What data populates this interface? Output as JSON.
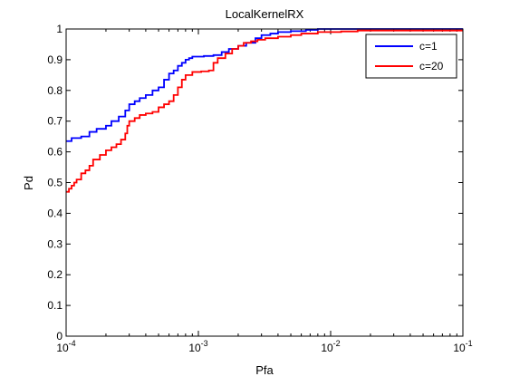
{
  "chart_data": {
    "type": "line",
    "title": "LocalKernelRX",
    "xlabel": "Pfa",
    "ylabel": "Pd",
    "xscale": "log",
    "xlim": [
      0.0001,
      0.1
    ],
    "ylim": [
      0,
      1
    ],
    "x_ticks": [
      {
        "value": 0.0001,
        "base": "10",
        "exp": "-4"
      },
      {
        "value": 0.001,
        "base": "10",
        "exp": "-3"
      },
      {
        "value": 0.01,
        "base": "10",
        "exp": "-2"
      },
      {
        "value": 0.1,
        "base": "10",
        "exp": "-1"
      }
    ],
    "y_ticks": [
      "0",
      "0.1",
      "0.2",
      "0.3",
      "0.4",
      "0.5",
      "0.6",
      "0.7",
      "0.8",
      "0.9",
      "1"
    ],
    "grid": false,
    "legend_position": "top-right",
    "series": [
      {
        "name": "c=1",
        "color": "#0000ff",
        "points": [
          [
            0.0001,
            0.635
          ],
          [
            0.00011,
            0.645
          ],
          [
            0.00013,
            0.65
          ],
          [
            0.00015,
            0.665
          ],
          [
            0.00017,
            0.675
          ],
          [
            0.0002,
            0.685
          ],
          [
            0.00022,
            0.7
          ],
          [
            0.00025,
            0.715
          ],
          [
            0.00028,
            0.735
          ],
          [
            0.0003,
            0.755
          ],
          [
            0.00033,
            0.765
          ],
          [
            0.00036,
            0.775
          ],
          [
            0.0004,
            0.785
          ],
          [
            0.00045,
            0.8
          ],
          [
            0.0005,
            0.81
          ],
          [
            0.00055,
            0.835
          ],
          [
            0.0006,
            0.855
          ],
          [
            0.00065,
            0.865
          ],
          [
            0.0007,
            0.88
          ],
          [
            0.00075,
            0.89
          ],
          [
            0.0008,
            0.9
          ],
          [
            0.00085,
            0.905
          ],
          [
            0.0009,
            0.91
          ],
          [
            0.0011,
            0.912
          ],
          [
            0.0013,
            0.915
          ],
          [
            0.0015,
            0.925
          ],
          [
            0.0017,
            0.935
          ],
          [
            0.002,
            0.945
          ],
          [
            0.0023,
            0.955
          ],
          [
            0.0027,
            0.97
          ],
          [
            0.003,
            0.98
          ],
          [
            0.0035,
            0.985
          ],
          [
            0.004,
            0.99
          ],
          [
            0.005,
            0.993
          ],
          [
            0.0065,
            0.997
          ],
          [
            0.008,
            1.0
          ],
          [
            0.1,
            1.0
          ]
        ]
      },
      {
        "name": "c=20",
        "color": "#ff0000",
        "points": [
          [
            0.0001,
            0.47
          ],
          [
            0.000105,
            0.48
          ],
          [
            0.00011,
            0.49
          ],
          [
            0.000115,
            0.5
          ],
          [
            0.00012,
            0.51
          ],
          [
            0.00013,
            0.53
          ],
          [
            0.00014,
            0.54
          ],
          [
            0.00015,
            0.555
          ],
          [
            0.00016,
            0.575
          ],
          [
            0.00018,
            0.59
          ],
          [
            0.0002,
            0.605
          ],
          [
            0.00022,
            0.615
          ],
          [
            0.00024,
            0.625
          ],
          [
            0.00026,
            0.64
          ],
          [
            0.00028,
            0.66
          ],
          [
            0.00029,
            0.685
          ],
          [
            0.0003,
            0.7
          ],
          [
            0.00033,
            0.71
          ],
          [
            0.00036,
            0.72
          ],
          [
            0.0004,
            0.725
          ],
          [
            0.00045,
            0.73
          ],
          [
            0.0005,
            0.745
          ],
          [
            0.00055,
            0.755
          ],
          [
            0.0006,
            0.765
          ],
          [
            0.00065,
            0.785
          ],
          [
            0.0007,
            0.81
          ],
          [
            0.00075,
            0.835
          ],
          [
            0.0008,
            0.85
          ],
          [
            0.0009,
            0.86
          ],
          [
            0.00105,
            0.862
          ],
          [
            0.0012,
            0.865
          ],
          [
            0.0013,
            0.89
          ],
          [
            0.0014,
            0.905
          ],
          [
            0.0016,
            0.92
          ],
          [
            0.0018,
            0.935
          ],
          [
            0.002,
            0.945
          ],
          [
            0.0022,
            0.955
          ],
          [
            0.0025,
            0.96
          ],
          [
            0.0028,
            0.965
          ],
          [
            0.0032,
            0.97
          ],
          [
            0.004,
            0.975
          ],
          [
            0.005,
            0.98
          ],
          [
            0.006,
            0.985
          ],
          [
            0.008,
            0.99
          ],
          [
            0.012,
            0.992
          ],
          [
            0.016,
            0.995
          ],
          [
            0.1,
            0.995
          ]
        ]
      }
    ]
  }
}
